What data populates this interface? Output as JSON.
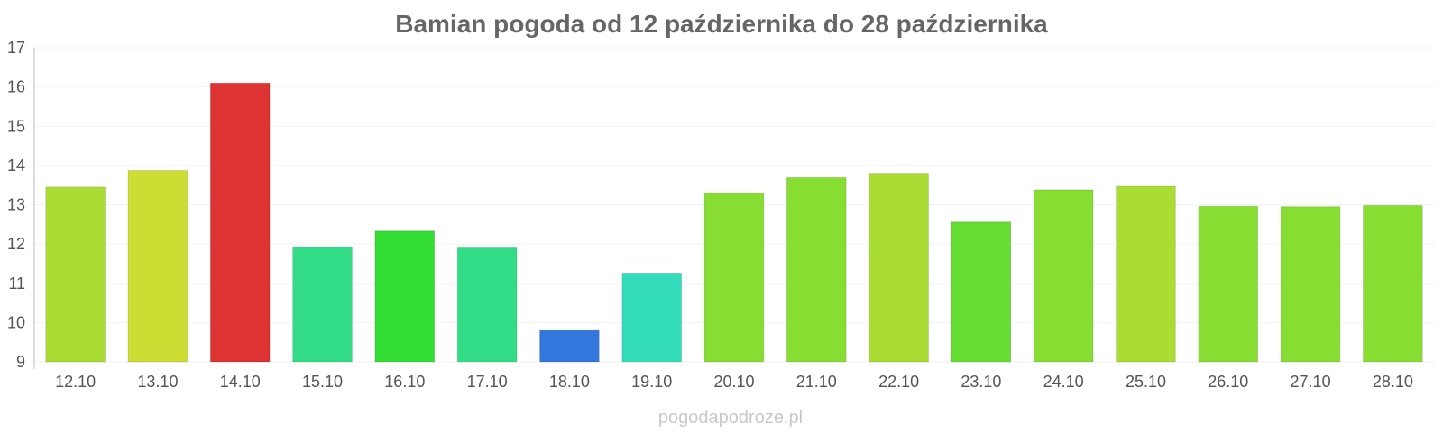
{
  "chart_data": {
    "type": "bar",
    "title": "Bamian pogoda od 12 października do 28 października",
    "xlabel": "",
    "ylabel": "",
    "categories": [
      "12.10",
      "13.10",
      "14.10",
      "15.10",
      "16.10",
      "17.10",
      "18.10",
      "19.10",
      "20.10",
      "21.10",
      "22.10",
      "23.10",
      "24.10",
      "25.10",
      "26.10",
      "27.10",
      "28.10"
    ],
    "values": [
      13.45,
      13.87,
      16.1,
      11.92,
      12.33,
      11.9,
      9.8,
      11.26,
      13.3,
      13.69,
      13.8,
      12.56,
      13.38,
      13.47,
      12.96,
      12.95,
      12.98
    ],
    "colors": [
      "#aadd33",
      "#ccdd33",
      "#dd3333",
      "#33dd88",
      "#33dd33",
      "#33dd88",
      "#3377dd",
      "#33ddbb",
      "#88dd33",
      "#88dd33",
      "#aadd33",
      "#66dd33",
      "#88dd33",
      "#aadd33",
      "#88dd33",
      "#88dd33",
      "#88dd33"
    ],
    "ylim": [
      9,
      17
    ],
    "yticks": [
      9,
      10,
      11,
      12,
      13,
      14,
      15,
      16,
      17
    ],
    "grid": true,
    "legend": "none"
  },
  "watermark": "pogodapodroze.pl"
}
